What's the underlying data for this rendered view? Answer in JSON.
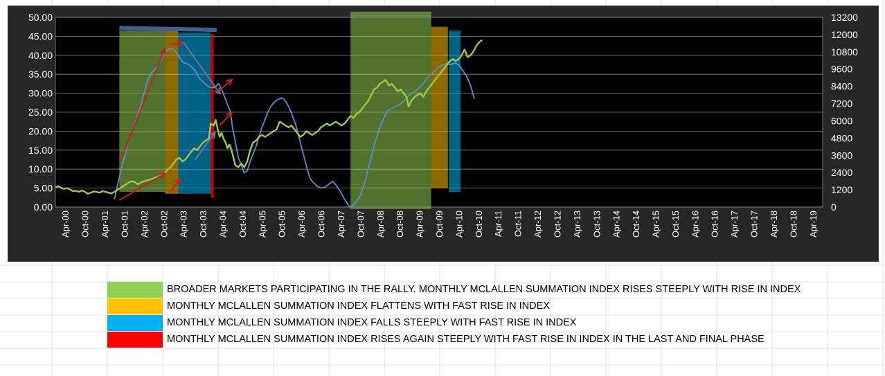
{
  "colors": {
    "green_zone": "#92D050",
    "orange_zone": "#FFC000",
    "blue_zone": "#00B0F0",
    "red_zone": "#FF0000",
    "index_line": "#a6c64a",
    "summation_line": "#5c8fce",
    "arrow_red": "#c81e1e",
    "arrow_gray": "#7b6f8f",
    "plot_bg": "#000000",
    "frame_bg": "#262626"
  },
  "legend": [
    {
      "color": "#92D050",
      "text": "BROADER MARKETS PARTICIPATING IN THE RALLY. MONTHLY MCLALLEN SUMMATION INDEX RISES STEEPLY WITH RISE IN INDEX"
    },
    {
      "color": "#FFC000",
      "text": "MONTHLY MCLALLEN SUMMATION INDEX FLATTENS WITH FAST RISE IN INDEX"
    },
    {
      "color": "#00B0F0",
      "text": "MONTHLY MCLALLEN SUMMATION INDEX FALLS STEEPLY WITH FAST RISE IN INDEX"
    },
    {
      "color": "#FF0000",
      "text": "MONTHLY MCLALLEN SUMMATION INDEX RISES AGAIN STEEPLY WITH FAST RISE IN INDEX IN THE LAST AND FINAL PHASE"
    }
  ],
  "chart_data": {
    "type": "line",
    "title": "",
    "xlabel": "",
    "ylabel": "",
    "x_tick_labels": [
      "Apr-00",
      "Oct-00",
      "Apr-01",
      "Oct-01",
      "Apr-02",
      "Oct-02",
      "Apr-03",
      "Oct-03",
      "Apr-04",
      "Oct-04",
      "Apr-05",
      "Oct-05",
      "Apr-06",
      "Oct-06",
      "Apr-07",
      "Oct-07",
      "Apr-08",
      "Oct-08",
      "Apr-09",
      "Oct-09",
      "Apr-10",
      "Oct-10",
      "Apr-11",
      "Oct-11",
      "Apr-12",
      "Oct-12",
      "Apr-13",
      "Oct-13",
      "Apr-14",
      "Oct-14",
      "Apr-15",
      "Oct-15",
      "Apr-16",
      "Oct-16",
      "Apr-17",
      "Oct-17",
      "Apr-18",
      "Oct-18",
      "Apr-19"
    ],
    "y_left": {
      "min": 0,
      "max": 50,
      "ticks": [
        "0.00",
        "5.00",
        "10.00",
        "15.00",
        "20.00",
        "25.00",
        "30.00",
        "35.00",
        "40.00",
        "45.00",
        "50.00"
      ]
    },
    "y_right": {
      "min": 0,
      "max": 13200,
      "ticks": [
        "0",
        "1200",
        "2400",
        "3600",
        "4800",
        "6000",
        "7200",
        "8400",
        "9600",
        "10800",
        "12000",
        "13200"
      ]
    },
    "grid": true,
    "series": [
      {
        "axis": "left",
        "color": "#5c8fce",
        "points": [
          [
            3.0,
            2.0
          ],
          [
            3.1,
            4.5
          ],
          [
            3.3,
            9
          ],
          [
            3.5,
            13
          ],
          [
            3.7,
            17
          ],
          [
            3.9,
            20
          ],
          [
            4.1,
            23
          ],
          [
            4.3,
            26
          ],
          [
            4.5,
            30
          ],
          [
            4.7,
            33.5
          ],
          [
            4.9,
            35.5
          ],
          [
            5.1,
            36.5
          ],
          [
            5.3,
            38
          ],
          [
            5.5,
            40
          ],
          [
            5.7,
            41.5
          ],
          [
            5.9,
            41.8
          ],
          [
            6.1,
            41
          ],
          [
            6.3,
            39.5
          ],
          [
            6.5,
            38
          ],
          [
            6.7,
            37.8
          ],
          [
            6.9,
            37
          ],
          [
            7.1,
            36
          ],
          [
            7.3,
            34
          ],
          [
            7.5,
            33
          ],
          [
            7.7,
            32
          ],
          [
            7.9,
            31.5
          ],
          [
            8.1,
            31.5
          ],
          [
            8.3,
            32.5
          ],
          [
            8.45,
            31
          ],
          [
            8.6,
            29
          ],
          [
            8.75,
            27
          ],
          [
            8.9,
            25
          ],
          [
            9.0,
            21
          ],
          [
            9.15,
            17
          ],
          [
            9.3,
            13
          ],
          [
            9.45,
            11
          ],
          [
            9.6,
            9
          ],
          [
            9.75,
            9.5
          ],
          [
            9.9,
            12
          ],
          [
            10.05,
            14
          ],
          [
            10.2,
            16
          ],
          [
            10.35,
            18.5
          ],
          [
            10.5,
            21
          ],
          [
            10.65,
            23
          ],
          [
            10.8,
            25
          ],
          [
            10.95,
            26.5
          ],
          [
            11.1,
            27.5
          ],
          [
            11.25,
            28.2
          ],
          [
            11.4,
            28.5
          ],
          [
            11.5,
            28.8
          ],
          [
            11.6,
            28.5
          ],
          [
            11.75,
            27.5
          ],
          [
            11.9,
            26
          ],
          [
            12.05,
            24
          ],
          [
            12.2,
            22
          ],
          [
            12.35,
            19
          ],
          [
            12.5,
            16
          ],
          [
            12.65,
            13
          ],
          [
            12.8,
            10
          ],
          [
            12.95,
            7.5
          ],
          [
            13.1,
            6.5
          ],
          [
            13.3,
            5.5
          ],
          [
            13.5,
            5
          ],
          [
            13.7,
            5.2
          ],
          [
            13.9,
            6
          ],
          [
            14.1,
            6.8
          ],
          [
            14.3,
            5.5
          ],
          [
            14.5,
            4
          ],
          [
            14.7,
            2
          ],
          [
            14.9,
            0.5
          ],
          [
            15.0,
            0
          ],
          [
            15.15,
            0.5
          ],
          [
            15.3,
            1.5
          ],
          [
            15.5,
            3
          ],
          [
            15.7,
            6
          ],
          [
            15.9,
            10
          ],
          [
            16.1,
            14
          ],
          [
            16.3,
            18
          ],
          [
            16.5,
            21
          ],
          [
            16.7,
            23.5
          ],
          [
            16.9,
            25.5
          ],
          [
            17.1,
            26
          ],
          [
            17.3,
            26.5
          ],
          [
            17.5,
            27
          ],
          [
            17.7,
            28
          ],
          [
            17.9,
            29
          ],
          [
            18.1,
            30
          ],
          [
            18.3,
            30.5
          ],
          [
            18.5,
            31.5
          ],
          [
            18.7,
            32.5
          ],
          [
            18.9,
            34
          ],
          [
            19.1,
            35
          ],
          [
            19.3,
            36
          ],
          [
            19.5,
            37
          ],
          [
            19.7,
            37.5
          ],
          [
            19.9,
            37.8
          ],
          [
            20.1,
            37.5
          ],
          [
            20.3,
            38
          ],
          [
            20.5,
            37.5
          ],
          [
            20.7,
            36
          ],
          [
            20.9,
            34.5
          ],
          [
            21.1,
            32
          ],
          [
            21.3,
            28.5
          ]
        ]
      },
      {
        "axis": "left",
        "color": "#a6c64a",
        "points": [
          [
            0.0,
            5.2
          ],
          [
            0.15,
            5.5
          ],
          [
            0.3,
            5.0
          ],
          [
            0.45,
            4.8
          ],
          [
            0.6,
            5.0
          ],
          [
            0.75,
            4.6
          ],
          [
            0.9,
            4.2
          ],
          [
            1.05,
            4.3
          ],
          [
            1.2,
            4.0
          ],
          [
            1.35,
            4.4
          ],
          [
            1.5,
            4.0
          ],
          [
            1.65,
            3.5
          ],
          [
            1.8,
            3.8
          ],
          [
            1.95,
            4.1
          ],
          [
            2.1,
            4.0
          ],
          [
            2.25,
            3.8
          ],
          [
            2.4,
            4.2
          ],
          [
            2.55,
            4.0
          ],
          [
            2.7,
            3.8
          ],
          [
            2.85,
            3.6
          ],
          [
            3.0,
            4.0
          ],
          [
            3.15,
            4.5
          ],
          [
            3.3,
            5.0
          ],
          [
            3.45,
            5.5
          ],
          [
            3.6,
            6.0
          ],
          [
            3.75,
            6.5
          ],
          [
            3.9,
            6.8
          ],
          [
            4.05,
            6.5
          ],
          [
            4.2,
            6.0
          ],
          [
            4.35,
            6.5
          ],
          [
            4.5,
            6.8
          ],
          [
            4.65,
            7.0
          ],
          [
            4.8,
            7.2
          ],
          [
            4.95,
            7.5
          ],
          [
            5.1,
            7.8
          ],
          [
            5.25,
            8.0
          ],
          [
            5.4,
            8.5
          ],
          [
            5.55,
            9.0
          ],
          [
            5.7,
            9.8
          ],
          [
            5.85,
            10.5
          ],
          [
            6.0,
            11.5
          ],
          [
            6.15,
            12.5
          ],
          [
            6.3,
            13.0
          ],
          [
            6.45,
            12.0
          ],
          [
            6.6,
            12.5
          ],
          [
            6.75,
            13.5
          ],
          [
            6.9,
            14.5
          ],
          [
            7.05,
            15.5
          ],
          [
            7.2,
            15.0
          ],
          [
            7.35,
            16.0
          ],
          [
            7.5,
            17.0
          ],
          [
            7.65,
            17.5
          ],
          [
            7.8,
            18.0
          ],
          [
            7.9,
            22.0
          ],
          [
            8.05,
            21.5
          ],
          [
            8.15,
            23.0
          ],
          [
            8.25,
            20.5
          ],
          [
            8.35,
            18.5
          ],
          [
            8.45,
            19.5
          ],
          [
            8.55,
            18.0
          ],
          [
            8.65,
            17.0
          ],
          [
            8.75,
            15.5
          ],
          [
            8.85,
            16.5
          ],
          [
            8.95,
            15.0
          ],
          [
            9.05,
            13.0
          ],
          [
            9.15,
            11.0
          ],
          [
            9.3,
            10.5
          ],
          [
            9.45,
            11.5
          ],
          [
            9.6,
            10.5
          ],
          [
            9.75,
            12.0
          ],
          [
            9.9,
            15.0
          ],
          [
            10.05,
            17.0
          ],
          [
            10.2,
            17.5
          ],
          [
            10.35,
            18.5
          ],
          [
            10.5,
            19.0
          ],
          [
            10.65,
            18.5
          ],
          [
            10.8,
            19.0
          ],
          [
            10.95,
            19.5
          ],
          [
            11.1,
            20.0
          ],
          [
            11.25,
            20.5
          ],
          [
            11.4,
            22.5
          ],
          [
            11.55,
            22.0
          ],
          [
            11.7,
            21.5
          ],
          [
            11.85,
            21.0
          ],
          [
            12.0,
            21.5
          ],
          [
            12.15,
            20.5
          ],
          [
            12.3,
            19.5
          ],
          [
            12.45,
            18.5
          ],
          [
            12.6,
            19.0
          ],
          [
            12.75,
            20.0
          ],
          [
            12.9,
            19.5
          ],
          [
            13.05,
            19.0
          ],
          [
            13.2,
            19.5
          ],
          [
            13.35,
            20.0
          ],
          [
            13.5,
            21.0
          ],
          [
            13.65,
            21.5
          ],
          [
            13.8,
            22.0
          ],
          [
            13.95,
            21.5
          ],
          [
            14.1,
            22.0
          ],
          [
            14.25,
            22.5
          ],
          [
            14.4,
            22.0
          ],
          [
            14.55,
            21.5
          ],
          [
            14.7,
            22.0
          ],
          [
            14.85,
            23.0
          ],
          [
            15.0,
            24.0
          ],
          [
            15.15,
            23.5
          ],
          [
            15.3,
            24.5
          ],
          [
            15.45,
            25.0
          ],
          [
            15.6,
            26.0
          ],
          [
            15.75,
            27.0
          ],
          [
            15.9,
            28.0
          ],
          [
            16.05,
            29.5
          ],
          [
            16.2,
            31.0
          ],
          [
            16.35,
            31.5
          ],
          [
            16.5,
            32.5
          ],
          [
            16.65,
            33.0
          ],
          [
            16.8,
            33.5
          ],
          [
            16.95,
            32.0
          ],
          [
            17.1,
            32.5
          ],
          [
            17.25,
            31.5
          ],
          [
            17.4,
            30.5
          ],
          [
            17.55,
            31.0
          ],
          [
            17.7,
            30.0
          ],
          [
            17.85,
            29.0
          ],
          [
            17.95,
            26.5
          ],
          [
            18.1,
            28.0
          ],
          [
            18.25,
            29.0
          ],
          [
            18.4,
            29.5
          ],
          [
            18.55,
            30.0
          ],
          [
            18.7,
            29.0
          ],
          [
            18.85,
            30.5
          ],
          [
            19.0,
            31.5
          ],
          [
            19.15,
            32.5
          ],
          [
            19.3,
            33.5
          ],
          [
            19.45,
            34.5
          ],
          [
            19.6,
            35.5
          ],
          [
            19.75,
            36.5
          ],
          [
            19.9,
            37.5
          ],
          [
            20.05,
            38.5
          ],
          [
            20.2,
            39.0
          ],
          [
            20.35,
            38.5
          ],
          [
            20.5,
            39.0
          ],
          [
            20.65,
            40.0
          ],
          [
            20.8,
            41.5
          ],
          [
            20.95,
            39.5
          ],
          [
            21.1,
            40.0
          ],
          [
            21.25,
            41.0
          ],
          [
            21.4,
            42.5
          ],
          [
            21.55,
            43.5
          ],
          [
            21.7,
            44.0
          ]
        ]
      }
    ],
    "zones": [
      {
        "color": "#92D050",
        "x1": 3.25,
        "x2": 5.57,
        "y1": 4.0,
        "y2": 46.5
      },
      {
        "color": "#FFC000",
        "x1": 5.57,
        "x2": 6.25,
        "y1": 3.5,
        "y2": 46.5
      },
      {
        "color": "#00B0F0",
        "x1": 6.25,
        "x2": 7.9,
        "y1": 3.5,
        "y2": 46.0
      },
      {
        "color": "#FF0000",
        "x1": 7.9,
        "x2": 8.05,
        "y1": 2.5,
        "y2": 45.5
      },
      {
        "color": "#92D050",
        "x1": 15.0,
        "x2": 19.1,
        "y1": -0.5,
        "y2": 51.5
      },
      {
        "color": "#FFC000",
        "x1": 19.1,
        "x2": 19.95,
        "y1": 5.0,
        "y2": 47.5
      },
      {
        "color": "#00B0F0",
        "x1": 20.0,
        "x2": 20.6,
        "y1": 4.0,
        "y2": 46.5
      }
    ],
    "top_bar": {
      "color": "#3f5f96",
      "x1": 3.25,
      "x2": 8.2,
      "y1": 47.2,
      "y2": 46.7
    },
    "arrows": [
      {
        "color": "#c81e1e",
        "from": [
          3.3,
          12.0
        ],
        "to": [
          5.55,
          41.5
        ]
      },
      {
        "color": "#c81e1e",
        "from": [
          3.25,
          1.8
        ],
        "to": [
          5.55,
          8.8
        ]
      },
      {
        "color": "#c81e1e",
        "from": [
          5.8,
          4.0
        ],
        "to": [
          6.35,
          7.2
        ]
      },
      {
        "color": "#c81e1e",
        "from": [
          5.8,
          42.8
        ],
        "to": [
          6.45,
          43.3
        ]
      },
      {
        "color": "#7b6f8f",
        "from": [
          6.5,
          43.5
        ],
        "to": [
          8.35,
          30.0
        ]
      },
      {
        "color": "#7b6f8f",
        "from": [
          7.1,
          12.5
        ],
        "to": [
          8.1,
          19.5
        ]
      },
      {
        "color": "#c81e1e",
        "from": [
          8.3,
          30.5
        ],
        "to": [
          8.95,
          33.5
        ]
      },
      {
        "color": "#c81e1e",
        "from": [
          8.35,
          21.5
        ],
        "to": [
          8.95,
          24.8
        ]
      }
    ]
  }
}
